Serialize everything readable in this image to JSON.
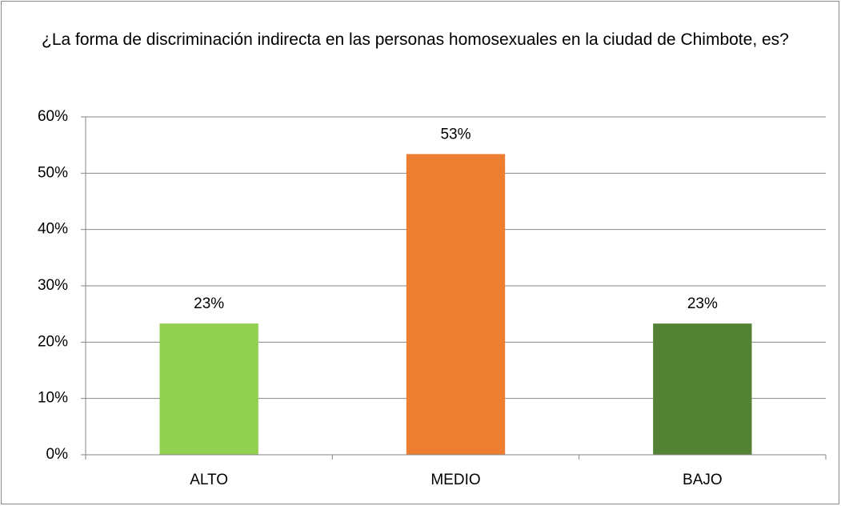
{
  "chart_data": {
    "type": "bar",
    "title": "¿La forma de discriminación indirecta en las personas homosexuales en la ciudad de Chimbote, es?",
    "categories": [
      "ALTO",
      "MEDIO",
      "BAJO"
    ],
    "values": [
      23.3,
      53.4,
      23.3
    ],
    "value_labels": [
      "23%",
      "53%",
      "23%"
    ],
    "colors": [
      "#92d050",
      "#ed7d31",
      "#548235"
    ],
    "ylim": [
      0,
      60
    ],
    "yticks": [
      {
        "value": 0,
        "label": "0%"
      },
      {
        "value": 10,
        "label": "10%"
      },
      {
        "value": 20,
        "label": "20%"
      },
      {
        "value": 30,
        "label": "30%"
      },
      {
        "value": 40,
        "label": "40%"
      },
      {
        "value": 50,
        "label": "50%"
      },
      {
        "value": 60,
        "label": "60%"
      }
    ],
    "grid": true
  }
}
